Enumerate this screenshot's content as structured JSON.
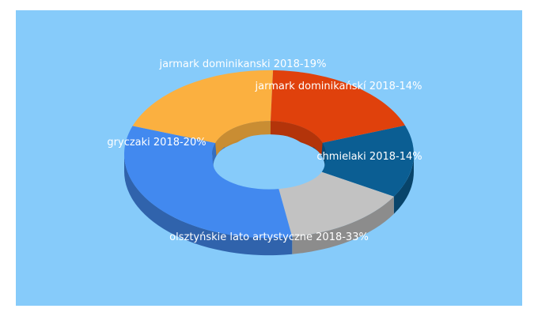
{
  "chart_data": {
    "type": "pie",
    "style": "3d-donut",
    "background_color": "#86cbfa",
    "slices": [
      {
        "label": "jarmark dominikańskí 2018-14%",
        "value": 14,
        "color": "#0b5e93"
      },
      {
        "label": "chmielaki 2018-14%",
        "value": 14,
        "color": "#c2c2c2"
      },
      {
        "label": "olsztyńskie lato artystyczne 2018-33%",
        "value": 33,
        "color": "#4289ef"
      },
      {
        "label": "gryczaki 2018-20%",
        "value": 20,
        "color": "#fbb040"
      },
      {
        "label": "jarmark dominikanski 2018-19%",
        "value": 19,
        "color": "#e0410c"
      }
    ]
  }
}
